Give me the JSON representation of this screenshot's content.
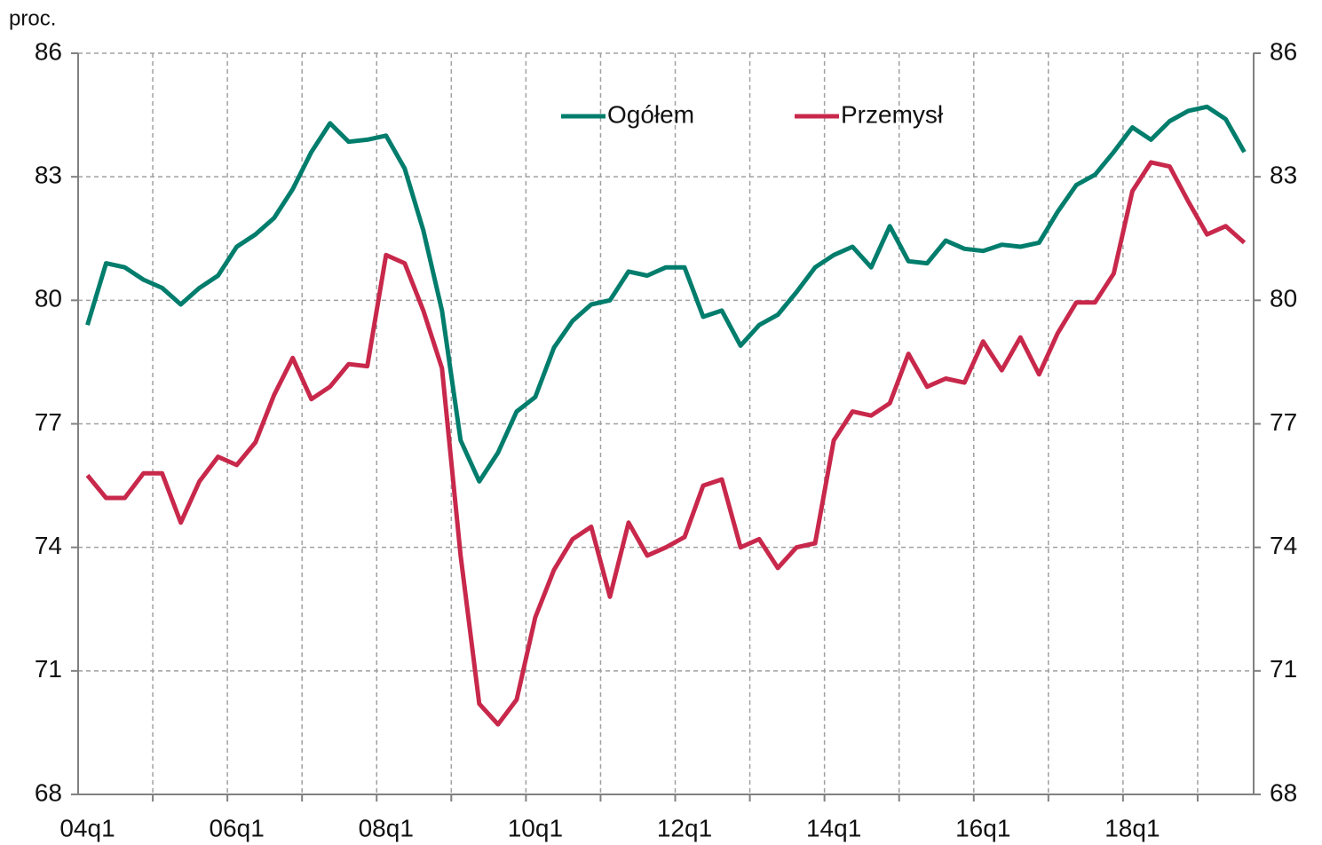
{
  "chart_data": {
    "type": "line",
    "y_label": "proc.",
    "categories": [
      "04q1",
      null,
      null,
      null,
      null,
      null,
      null,
      null,
      "06q1",
      null,
      null,
      null,
      null,
      null,
      null,
      null,
      "08q1",
      null,
      null,
      null,
      null,
      null,
      null,
      null,
      "10q1",
      null,
      null,
      null,
      null,
      null,
      null,
      null,
      "12q1",
      null,
      null,
      null,
      null,
      null,
      null,
      null,
      "14q1",
      null,
      null,
      null,
      null,
      null,
      null,
      null,
      "16q1",
      null,
      null,
      null,
      null,
      null,
      null,
      null,
      "18q1",
      null,
      null,
      null,
      null,
      null,
      null
    ],
    "series": [
      {
        "name": "Ogółem",
        "color": "#007d6c",
        "values": [
          79.4,
          80.9,
          80.8,
          80.5,
          80.3,
          79.9,
          80.3,
          80.6,
          81.3,
          81.6,
          82.0,
          82.7,
          83.6,
          84.3,
          83.85,
          83.9,
          84.0,
          83.2,
          81.7,
          79.75,
          76.6,
          75.6,
          76.3,
          77.3,
          77.65,
          78.85,
          79.5,
          79.9,
          80.0,
          80.7,
          80.6,
          80.8,
          80.8,
          79.6,
          79.75,
          78.9,
          79.4,
          79.65,
          80.2,
          80.8,
          81.1,
          81.3,
          80.8,
          81.8,
          80.95,
          80.9,
          81.45,
          81.25,
          81.2,
          81.35,
          81.3,
          81.4,
          82.15,
          82.8,
          83.05,
          83.6,
          84.2,
          83.9,
          84.35,
          84.6,
          84.7,
          84.4,
          83.6
        ]
      },
      {
        "name": "Przemysł",
        "color": "#c8284b",
        "values": [
          75.75,
          75.2,
          75.2,
          75.8,
          75.8,
          74.6,
          75.6,
          76.2,
          76.0,
          76.55,
          77.7,
          78.6,
          77.6,
          77.9,
          78.45,
          78.4,
          81.1,
          80.9,
          79.75,
          78.35,
          73.8,
          70.2,
          69.7,
          70.3,
          72.3,
          73.45,
          74.2,
          74.5,
          72.8,
          74.6,
          73.8,
          74.0,
          74.25,
          75.5,
          75.65,
          74.0,
          74.2,
          73.5,
          74.0,
          74.1,
          76.6,
          77.3,
          77.2,
          77.5,
          78.7,
          77.9,
          78.1,
          78.0,
          79.0,
          78.3,
          79.1,
          78.2,
          79.2,
          79.95,
          79.95,
          80.65,
          82.65,
          83.35,
          83.25,
          82.4,
          81.6,
          81.8,
          81.4
        ]
      }
    ],
    "ylim": [
      68,
      86
    ],
    "yticks": [
      68,
      71,
      74,
      77,
      80,
      83,
      86
    ],
    "grid": true
  }
}
